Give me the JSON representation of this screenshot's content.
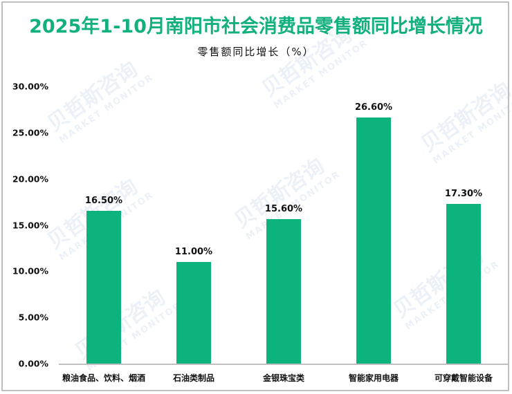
{
  "title": "2025年1-10月南阳市社会消费品零售额同比增长情况",
  "subtitle": "零售额同比增长（%）",
  "watermark": {
    "cn": "贝哲斯咨询",
    "en": "MARKET MONITOR"
  },
  "colors": {
    "bar": "#0db37d",
    "title": "#12b07e",
    "axis": "#c0c0c0",
    "frame": "#bfbfbf"
  },
  "y_ticks": [
    "30.00%",
    "25.00%",
    "20.00%",
    "15.00%",
    "10.00%",
    "5.00%",
    "0.00%"
  ],
  "bars": [
    {
      "category": "粮油食品、饮料、烟酒",
      "value": 16.5,
      "label": "16.50%"
    },
    {
      "category": "石油类制品",
      "value": 11.0,
      "label": "11.00%"
    },
    {
      "category": "金银珠宝类",
      "value": 15.6,
      "label": "15.60%"
    },
    {
      "category": "智能家用电器",
      "value": 26.6,
      "label": "26.60%"
    },
    {
      "category": "可穿戴智能设备",
      "value": 17.3,
      "label": "17.30%"
    }
  ],
  "chart_data": {
    "type": "bar",
    "title": "2025年1-10月南阳市社会消费品零售额同比增长情况",
    "subtitle": "零售额同比增长（%）",
    "categories": [
      "粮油食品、饮料、烟酒",
      "石油类制品",
      "金银珠宝类",
      "智能家用电器",
      "可穿戴智能设备"
    ],
    "values": [
      16.5,
      11.0,
      15.6,
      26.6,
      17.3
    ],
    "data_labels": [
      "16.50%",
      "11.00%",
      "15.60%",
      "26.60%",
      "17.30%"
    ],
    "xlabel": "",
    "ylabel": "零售额同比增长（%）",
    "ylim": [
      0,
      30
    ],
    "yticks": [
      0,
      5,
      10,
      15,
      20,
      25,
      30
    ],
    "ytick_format": "0.00%",
    "grid": false,
    "legend": "none"
  }
}
